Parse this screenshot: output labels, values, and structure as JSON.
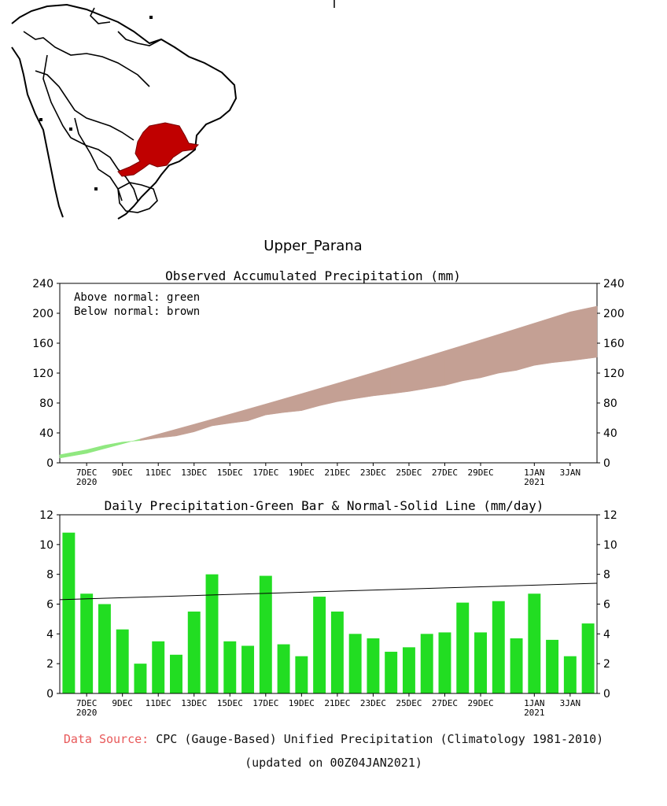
{
  "map": {
    "highlight_color": "#c00000",
    "region": "Upper_Parana basin (highlighted)"
  },
  "region_title": "Upper_Parana",
  "colors": {
    "above_normal": "#90e880",
    "below_normal": "#c4a094",
    "daily_bar": "#22dd22",
    "normal_line": "#000000",
    "source_label": "#e8595a"
  },
  "chart_data": [
    {
      "type": "area",
      "title": "Observed Accumulated Precipitation (mm)",
      "legend": [
        "Above normal: green",
        "Below normal: brown"
      ],
      "x_ticks": [
        "7DEC",
        "9DEC",
        "11DEC",
        "13DEC",
        "15DEC",
        "17DEC",
        "19DEC",
        "21DEC",
        "23DEC",
        "25DEC",
        "27DEC",
        "29DEC",
        "1JAN",
        "3JAN"
      ],
      "x_tick_sublabels": {
        "7DEC": "2020",
        "1JAN": "2021"
      },
      "x_start": "2020-12-06",
      "x_end": "2021-01-04",
      "ylim": [
        0,
        240
      ],
      "y_ticks": [
        0,
        40,
        80,
        120,
        160,
        200,
        240
      ],
      "normal": [
        6.3,
        12.6,
        19.0,
        25.4,
        31.9,
        38.4,
        45.0,
        51.6,
        58.3,
        65.1,
        71.9,
        78.7,
        85.6,
        92.5,
        99.5,
        106.5,
        113.6,
        120.7,
        127.9,
        135.1,
        142.4,
        149.7,
        157.0,
        164.4,
        171.8,
        179.3,
        186.8,
        194.3,
        201.9,
        209.5
      ],
      "observed": [
        10.8,
        17.5,
        23.5,
        27.8,
        29.8,
        33.3,
        35.9,
        41.4,
        49.4,
        52.9,
        56.1,
        64.0,
        67.3,
        69.8,
        76.3,
        81.8,
        85.8,
        89.5,
        92.3,
        95.4,
        99.4,
        103.5,
        109.6,
        113.7,
        119.9,
        123.6,
        130.3,
        133.9,
        136.4,
        141.1
      ]
    },
    {
      "type": "bar",
      "title": "Daily Precipitation-Green Bar & Normal-Solid Line (mm/day)",
      "x_ticks": [
        "7DEC",
        "9DEC",
        "11DEC",
        "13DEC",
        "15DEC",
        "17DEC",
        "19DEC",
        "21DEC",
        "23DEC",
        "25DEC",
        "27DEC",
        "29DEC",
        "1JAN",
        "3JAN"
      ],
      "x_tick_sublabels": {
        "7DEC": "2020",
        "1JAN": "2021"
      },
      "x_start": "2020-12-06",
      "x_end": "2021-01-04",
      "ylim": [
        0,
        12
      ],
      "y_ticks": [
        0,
        2,
        4,
        6,
        8,
        10,
        12
      ],
      "values": [
        10.8,
        6.7,
        6.0,
        4.3,
        2.0,
        3.5,
        2.6,
        5.5,
        8.0,
        3.5,
        3.2,
        7.9,
        3.3,
        2.5,
        6.5,
        5.5,
        4.0,
        3.7,
        2.8,
        3.1,
        4.0,
        4.1,
        6.1,
        4.1,
        6.2,
        3.7,
        6.7,
        3.6,
        2.5,
        4.7
      ],
      "normal_line": {
        "start": 6.3,
        "end": 7.4
      }
    }
  ],
  "footer": {
    "source_label": "Data Source:",
    "source_text": "CPC (Gauge-Based) Unified Precipitation (Climatology 1981-2010)",
    "updated": "(updated on 00Z04JAN2021)"
  }
}
